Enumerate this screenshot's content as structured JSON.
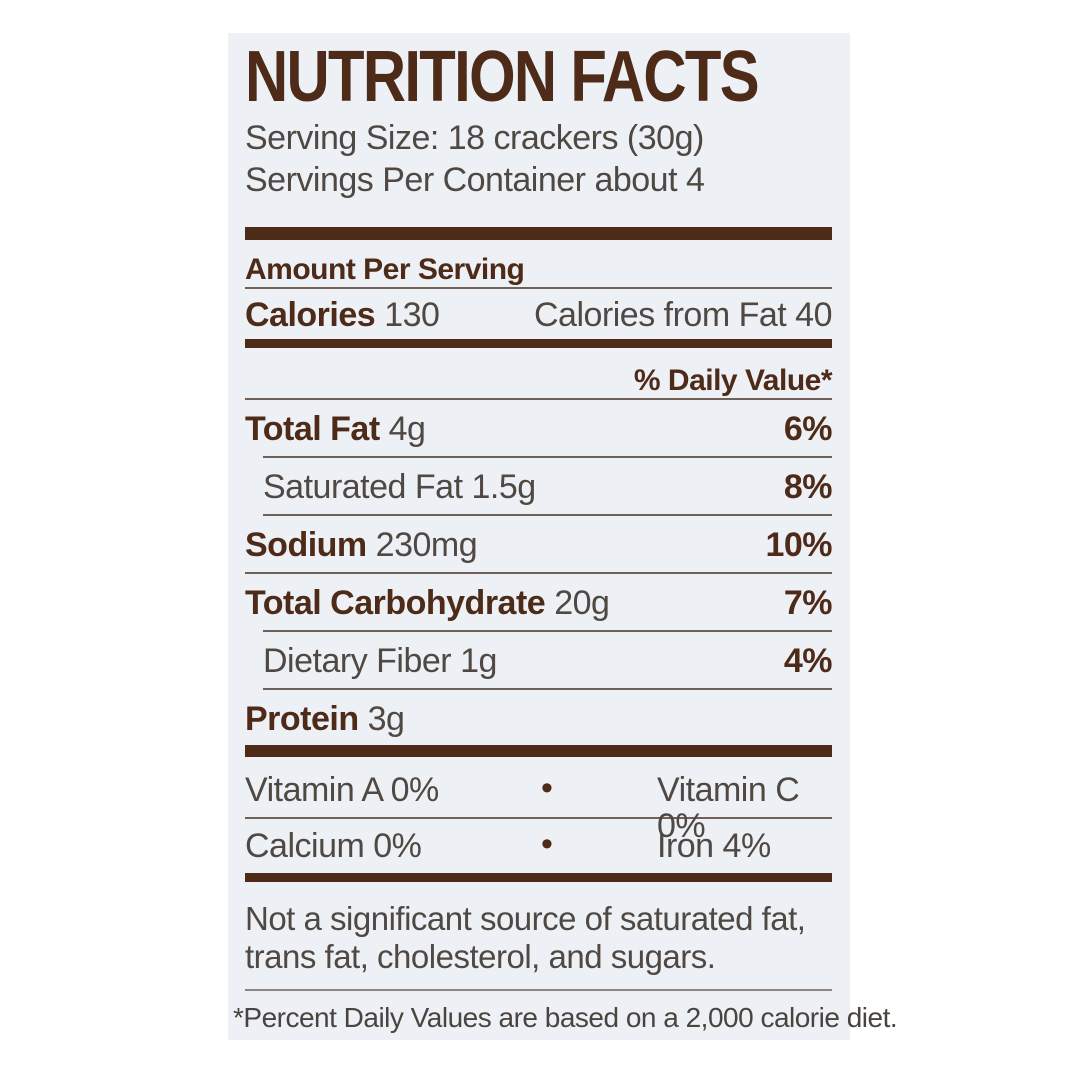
{
  "colors": {
    "panel_background": "#edf1f5",
    "page_background": "#ffffff",
    "brown_accent": "#4e2a18",
    "body_text": "#4f4843"
  },
  "header": {
    "title": "NUTRITION FACTS",
    "serving_size": "Serving Size: 18 crackers (30g)",
    "servings_per_container": "Servings Per Container about 4"
  },
  "amount_per_serving": {
    "label": "Amount Per Serving",
    "calories_label": "Calories",
    "calories_value": "130",
    "calories_from_fat": "Calories from Fat 40",
    "daily_value_header": "% Daily Value*"
  },
  "nutrients": [
    {
      "name": "Total Fat",
      "amount": "4g",
      "dv": "6%"
    },
    {
      "name": "Saturated Fat",
      "amount": "1.5g",
      "dv": "8%"
    },
    {
      "name": "Sodium",
      "amount": "230mg",
      "dv": "10%"
    },
    {
      "name": "Total Carbohydrate",
      "amount": "20g",
      "dv": "7%"
    },
    {
      "name": "Dietary Fiber",
      "amount": "1g",
      "dv": "4%"
    },
    {
      "name": "Protein",
      "amount": "3g",
      "dv": ""
    }
  ],
  "vitamins": {
    "bullet": "•",
    "rows": [
      {
        "left": "Vitamin A 0%",
        "right": "Vitamin C 0%"
      },
      {
        "left": "Calcium 0%",
        "right": "Iron 4%"
      }
    ]
  },
  "footer": {
    "not_significant_1": "Not a significant source of saturated fat,",
    "not_significant_2": "trans fat, cholesterol, and sugars.",
    "daily_values_note": "*Percent Daily Values are based on a 2,000 calorie diet."
  }
}
